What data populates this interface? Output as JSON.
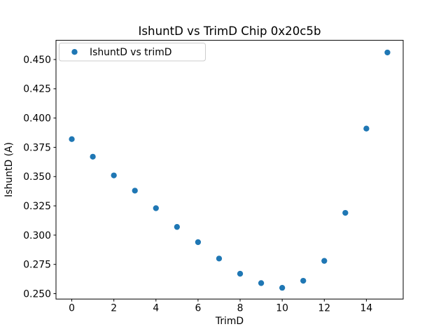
{
  "chart_data": {
    "type": "scatter",
    "title": "IshuntD vs TrimD Chip 0x20c5b",
    "xlabel": "TrimD",
    "ylabel": "IshuntD (A)",
    "legend": {
      "position": "upper left",
      "entries": [
        "IshuntD vs trimD"
      ]
    },
    "x": [
      0,
      1,
      2,
      3,
      4,
      5,
      6,
      7,
      8,
      9,
      10,
      11,
      12,
      13,
      14,
      15
    ],
    "series": [
      {
        "name": "IshuntD vs trimD",
        "values": [
          0.382,
          0.367,
          0.351,
          0.338,
          0.323,
          0.307,
          0.294,
          0.28,
          0.267,
          0.259,
          0.255,
          0.261,
          0.278,
          0.319,
          0.391,
          0.456
        ]
      }
    ],
    "xlim": [
      -0.75,
      15.75
    ],
    "ylim": [
      0.2454,
      0.4664
    ],
    "xticks": [
      0,
      2,
      4,
      6,
      8,
      10,
      12,
      14
    ],
    "xtick_labels": [
      "0",
      "2",
      "4",
      "6",
      "8",
      "10",
      "12",
      "14"
    ],
    "yticks": [
      0.25,
      0.275,
      0.3,
      0.325,
      0.35,
      0.375,
      0.4,
      0.425,
      0.45
    ],
    "ytick_labels": [
      "0.250",
      "0.275",
      "0.300",
      "0.325",
      "0.350",
      "0.375",
      "0.400",
      "0.425",
      "0.450"
    ],
    "grid": false,
    "marker_color": "#1f77b4",
    "axis_color": "#000000",
    "legend_border_color": "#cccccc",
    "background": "#ffffff"
  }
}
